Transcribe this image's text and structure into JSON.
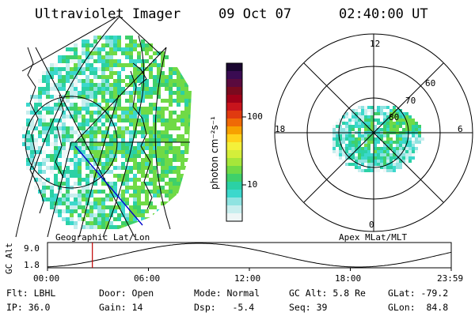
{
  "header": {
    "instrument": "Ultraviolet Imager",
    "date": "09 Oct 07",
    "time": "02:40:00 UT"
  },
  "left_map": {
    "label": "Geographic Lat/Lon"
  },
  "right_map": {
    "label": "Apex MLat/MLT",
    "mlt_labels": {
      "top": "12",
      "left": "18",
      "right": "6",
      "bottom": "0"
    },
    "lat_labels": [
      "60",
      "70",
      "80"
    ]
  },
  "colorbar": {
    "unit_label": "photon cm⁻²s⁻¹",
    "ticks": [
      "100",
      "10"
    ],
    "colors": [
      "#1a0630",
      "#3a0b52",
      "#5a0a3e",
      "#7a0a1e",
      "#a00018",
      "#c8141c",
      "#e03a10",
      "#ef6a06",
      "#f7a100",
      "#ffd21a",
      "#f4f03a",
      "#d4ee3a",
      "#a6e63a",
      "#70da46",
      "#3fd06a",
      "#2bd1a5",
      "#3cd8cc",
      "#8fe3e1",
      "#c8eeee",
      "#eef6f6"
    ]
  },
  "altitude_plot": {
    "ylabel": "GC Alt",
    "yticks": [
      "9.0",
      "1.8"
    ],
    "xticks": [
      "00:00",
      "06:00",
      "12:00",
      "18:00",
      "23:59"
    ],
    "current_time_hours": 2.667,
    "cursor_color": "#c00000"
  },
  "info": {
    "filter": "Flt: LBHL",
    "ip": "IP: 36.0",
    "door": "Door: Open",
    "gain": "Gain: 14",
    "mode": "Mode: Normal",
    "dsp": "Dsp:   -5.4",
    "gc_alt": "GC Alt: 5.8 Re",
    "seq": "Seq: 39",
    "glat": "GLat: -79.2",
    "glon": "GLon:  84.8"
  }
}
